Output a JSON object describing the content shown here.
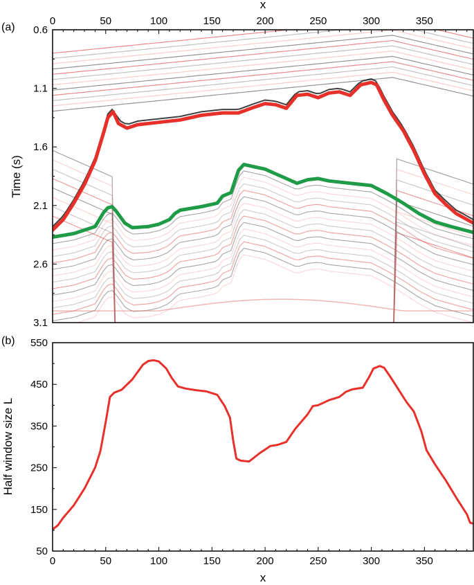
{
  "chart_data": [
    {
      "panel_label": "(a)",
      "type": "line",
      "background": "seismic-section",
      "xlabel": "x",
      "ylabel": "Time (s)",
      "xlim": [
        0,
        396
      ],
      "ylim": [
        3.1,
        0.6
      ],
      "x_ticks": [
        "0",
        "50",
        "100",
        "150",
        "200",
        "250",
        "300",
        "350"
      ],
      "y_ticks": [
        "0.6",
        "1.1",
        "1.6",
        "2.1",
        "2.6",
        "3.1"
      ],
      "x_axis_position": "top",
      "series": [
        {
          "color": "#e8302a",
          "points": [
            [
              0,
              2.31
            ],
            [
              10,
              2.22
            ],
            [
              20,
              2.08
            ],
            [
              30,
              1.92
            ],
            [
              40,
              1.72
            ],
            [
              48,
              1.48
            ],
            [
              52,
              1.35
            ],
            [
              57,
              1.3
            ],
            [
              62,
              1.4
            ],
            [
              70,
              1.44
            ],
            [
              80,
              1.41
            ],
            [
              100,
              1.39
            ],
            [
              120,
              1.37
            ],
            [
              140,
              1.33
            ],
            [
              160,
              1.31
            ],
            [
              175,
              1.31
            ],
            [
              190,
              1.26
            ],
            [
              200,
              1.23
            ],
            [
              210,
              1.24
            ],
            [
              220,
              1.27
            ],
            [
              230,
              1.16
            ],
            [
              240,
              1.15
            ],
            [
              250,
              1.18
            ],
            [
              260,
              1.14
            ],
            [
              270,
              1.13
            ],
            [
              280,
              1.16
            ],
            [
              290,
              1.07
            ],
            [
              300,
              1.05
            ],
            [
              305,
              1.07
            ],
            [
              312,
              1.2
            ],
            [
              320,
              1.33
            ],
            [
              330,
              1.46
            ],
            [
              340,
              1.63
            ],
            [
              350,
              1.83
            ],
            [
              360,
              2.0
            ],
            [
              370,
              2.09
            ],
            [
              380,
              2.17
            ],
            [
              396,
              2.25
            ]
          ]
        },
        {
          "color": "#1f9a47",
          "points": [
            [
              0,
              2.37
            ],
            [
              20,
              2.34
            ],
            [
              40,
              2.28
            ],
            [
              48,
              2.16
            ],
            [
              52,
              2.12
            ],
            [
              56,
              2.11
            ],
            [
              60,
              2.15
            ],
            [
              68,
              2.25
            ],
            [
              75,
              2.29
            ],
            [
              90,
              2.28
            ],
            [
              100,
              2.26
            ],
            [
              110,
              2.22
            ],
            [
              115,
              2.17
            ],
            [
              120,
              2.14
            ],
            [
              140,
              2.11
            ],
            [
              155,
              2.08
            ],
            [
              160,
              2.02
            ],
            [
              168,
              1.99
            ],
            [
              172,
              1.88
            ],
            [
              175,
              1.8
            ],
            [
              180,
              1.75
            ],
            [
              190,
              1.77
            ],
            [
              200,
              1.79
            ],
            [
              210,
              1.83
            ],
            [
              220,
              1.87
            ],
            [
              230,
              1.91
            ],
            [
              240,
              1.88
            ],
            [
              250,
              1.87
            ],
            [
              260,
              1.89
            ],
            [
              280,
              1.91
            ],
            [
              300,
              1.93
            ],
            [
              315,
              2.0
            ],
            [
              330,
              2.08
            ],
            [
              345,
              2.17
            ],
            [
              360,
              2.24
            ],
            [
              375,
              2.28
            ],
            [
              396,
              2.33
            ]
          ]
        }
      ]
    },
    {
      "panel_label": "(b)",
      "type": "line",
      "xlabel": "x",
      "ylabel": "Half window size L",
      "xlim": [
        0,
        396
      ],
      "ylim": [
        50,
        550
      ],
      "x_ticks": [
        "0",
        "50",
        "100",
        "150",
        "200",
        "250",
        "300",
        "350"
      ],
      "y_ticks": [
        "50",
        "150",
        "250",
        "350",
        "450",
        "550"
      ],
      "x_axis_position": "bottom",
      "series": [
        {
          "color": "#e8302a",
          "points": [
            [
              0,
              102
            ],
            [
              5,
              112
            ],
            [
              10,
              130
            ],
            [
              20,
              160
            ],
            [
              30,
              200
            ],
            [
              40,
              250
            ],
            [
              45,
              290
            ],
            [
              50,
              360
            ],
            [
              54,
              420
            ],
            [
              58,
              430
            ],
            [
              65,
              437
            ],
            [
              75,
              462
            ],
            [
              85,
              497
            ],
            [
              90,
              506
            ],
            [
              95,
              508
            ],
            [
              100,
              505
            ],
            [
              107,
              488
            ],
            [
              112,
              466
            ],
            [
              118,
              445
            ],
            [
              125,
              440
            ],
            [
              135,
              436
            ],
            [
              145,
              433
            ],
            [
              155,
              425
            ],
            [
              162,
              398
            ],
            [
              167,
              370
            ],
            [
              170,
              315
            ],
            [
              173,
              272
            ],
            [
              177,
              267
            ],
            [
              185,
              265
            ],
            [
              195,
              285
            ],
            [
              205,
              302
            ],
            [
              212,
              305
            ],
            [
              220,
              312
            ],
            [
              228,
              342
            ],
            [
              240,
              378
            ],
            [
              245,
              398
            ],
            [
              250,
              400
            ],
            [
              260,
              412
            ],
            [
              270,
              420
            ],
            [
              276,
              432
            ],
            [
              282,
              438
            ],
            [
              292,
              442
            ],
            [
              298,
              468
            ],
            [
              302,
              488
            ],
            [
              308,
              494
            ],
            [
              312,
              490
            ],
            [
              318,
              468
            ],
            [
              326,
              436
            ],
            [
              333,
              408
            ],
            [
              340,
              385
            ],
            [
              347,
              338
            ],
            [
              352,
              292
            ],
            [
              360,
              258
            ],
            [
              370,
              220
            ],
            [
              380,
              178
            ],
            [
              390,
              138
            ],
            [
              393,
              118
            ],
            [
              396,
              116
            ]
          ]
        }
      ]
    }
  ]
}
